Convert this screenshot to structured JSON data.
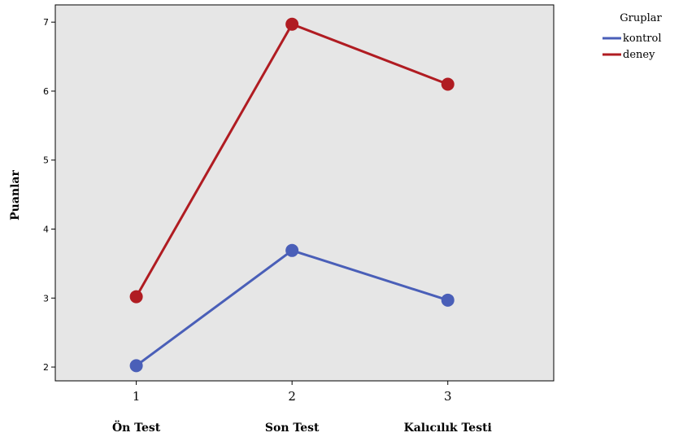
{
  "chart_data": {
    "type": "line",
    "x": [
      1,
      2,
      3
    ],
    "xtick_labels": [
      "1",
      "2",
      "3"
    ],
    "categories": [
      "Ön Test",
      "Son Test",
      "Kalıcılık Testi"
    ],
    "ylabel": "Puanlar",
    "xlabel": "",
    "yticks": [
      2,
      3,
      4,
      5,
      6,
      7
    ],
    "ylim": [
      1.8,
      7.25
    ],
    "xlim": [
      0.48,
      3.68
    ],
    "grid": false,
    "plot_background": "#e6e6e6",
    "legend": {
      "title": "Gruplar",
      "placement": "top-right, outside plot"
    },
    "series": [
      {
        "name": "kontrol",
        "color": "#4a5fb8",
        "values": [
          2.02,
          3.69,
          2.97
        ]
      },
      {
        "name": "deney",
        "color": "#b01c22",
        "values": [
          3.02,
          6.97,
          6.1
        ]
      }
    ]
  }
}
